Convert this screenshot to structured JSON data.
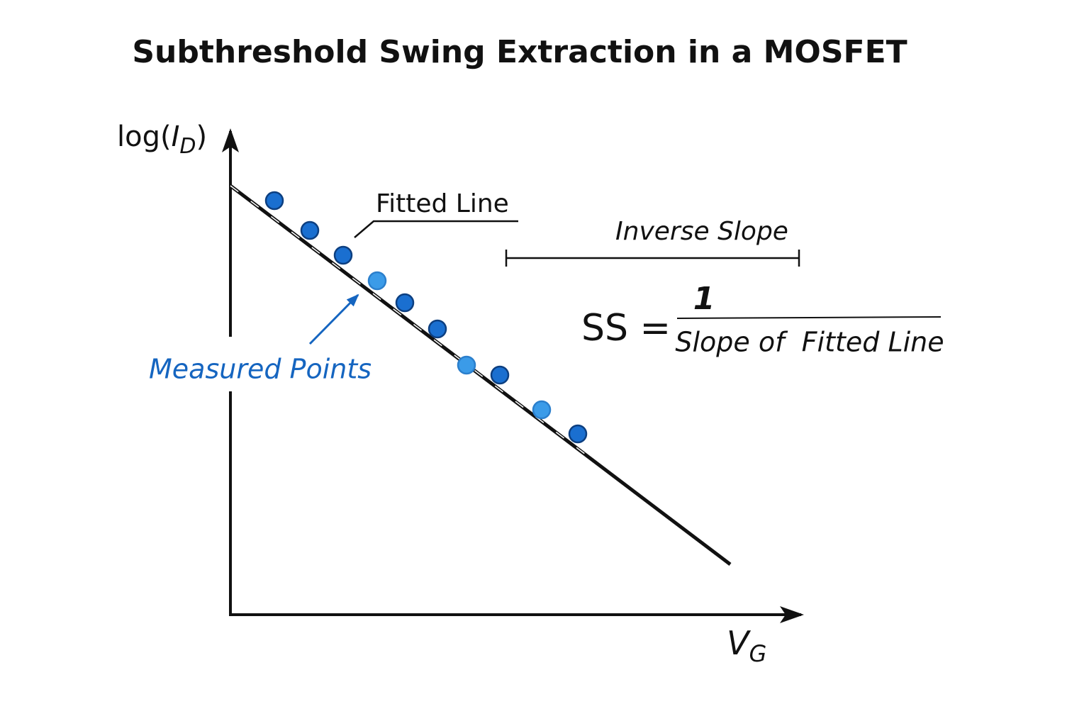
{
  "title": "Subthreshold Swing Extraction in a MOSFET",
  "y_axis_label": {
    "prefix": "log(",
    "variable": "I",
    "subscript": "D",
    "suffix": ")"
  },
  "x_axis_label": {
    "variable": "V",
    "subscript": "G"
  },
  "annotations": {
    "fitted_line": "Fitted Line",
    "inverse_slope": "Inverse Slope",
    "measured_points": "Measured Points"
  },
  "formula": {
    "lhs": "SS =",
    "numerator": "1",
    "denominator": "Slope of  Fitted Line"
  }
}
